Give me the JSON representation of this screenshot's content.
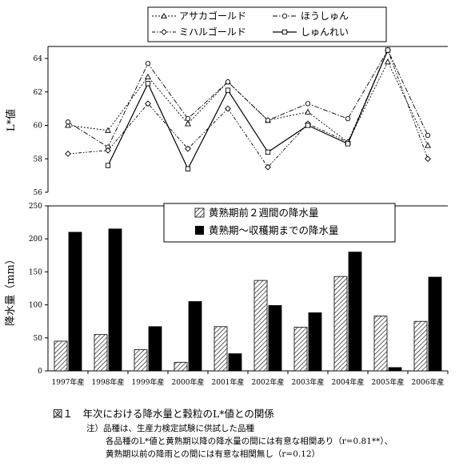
{
  "chart_data": [
    {
      "type": "line",
      "ylabel": "L*値",
      "ylim": [
        56,
        64
      ],
      "yticks": [
        56,
        58,
        60,
        62,
        64
      ],
      "grid": false,
      "legend_position": "top",
      "categories": [
        "1997年産",
        "1998年産",
        "1999年産",
        "2000年産",
        "2001年産",
        "2002年産",
        "2003年産",
        "2004年産",
        "2005年産",
        "2006年産"
      ],
      "series": [
        {
          "name": "アサカゴールド",
          "marker": "triangle",
          "dash": "2,2",
          "values": [
            60.0,
            59.7,
            62.9,
            60.1,
            62.6,
            60.3,
            60.8,
            59.0,
            63.8,
            58.8
          ]
        },
        {
          "name": "ほうしゅん",
          "marker": "circle",
          "dash": "6,2,1.5,2",
          "values": [
            60.2,
            58.7,
            63.7,
            60.4,
            62.6,
            60.3,
            61.3,
            60.4,
            64.5,
            59.4
          ]
        },
        {
          "name": "ミハルゴールド",
          "marker": "diamond",
          "dash": "4,2,1.5,2,1.5,2",
          "values": [
            58.3,
            58.5,
            61.3,
            58.6,
            61.0,
            57.5,
            60.1,
            59.0,
            64.5,
            58.0
          ]
        },
        {
          "name": "しゅんれい",
          "marker": "square",
          "dash": "",
          "values": [
            null,
            57.6,
            62.5,
            57.4,
            62.1,
            58.4,
            60.0,
            58.9,
            64.5,
            null
          ]
        }
      ]
    },
    {
      "type": "bar",
      "ylabel": "降水量（mm）",
      "ylim": [
        0,
        250
      ],
      "yticks": [
        0,
        50,
        100,
        150,
        200,
        250
      ],
      "grid": false,
      "legend_position": "top-right",
      "categories": [
        "1997年産",
        "1998年産",
        "1999年産",
        "2000年産",
        "2001年産",
        "2002年産",
        "2003年産",
        "2004年産",
        "2005年産",
        "2006年産"
      ],
      "series": [
        {
          "name": "黄熟期前２週間の降水量",
          "fill": "hatch",
          "values": [
            45,
            55,
            32,
            13,
            67,
            137,
            66,
            143,
            83,
            75
          ]
        },
        {
          "name": "黄熟期～収穫期までの降水量",
          "fill": "solid",
          "values": [
            210,
            215,
            67,
            105,
            26,
            99,
            88,
            180,
            5,
            142
          ]
        }
      ]
    }
  ],
  "caption": "図１　年次における降水量と穀粒のL*値との関係",
  "notes": [
    "注）品種は、生産力検定試験に供試した品種",
    "各品種のL*値と黄熟期以降の降水量の間には有意な相関あり（r=0.81**）、",
    "黄熟期以前の降雨との間には有意な相関無し（r=0.12）"
  ]
}
